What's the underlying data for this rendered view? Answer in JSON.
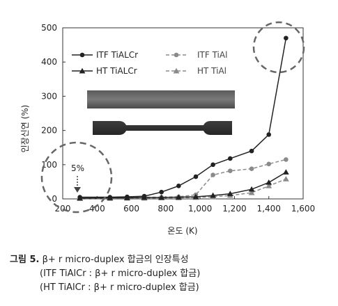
{
  "chart_data": {
    "type": "line",
    "xlabel": "온도 (K)",
    "ylabel": "인장신연 (%)",
    "xlim": [
      200,
      1600
    ],
    "ylim": [
      0,
      500
    ],
    "x_ticks": [
      "200",
      "400",
      "600",
      "800",
      "1,000",
      "1,200",
      "1,400",
      "1,600"
    ],
    "y_ticks": [
      "0",
      "100",
      "200",
      "300",
      "400",
      "500"
    ],
    "annotation": "5%",
    "grid": false,
    "legend_position": "top-left",
    "series": [
      {
        "name": "ITF TiALCr",
        "marker": "circle",
        "color": "#222222",
        "line_style": "solid",
        "x": [
          300,
          475,
          575,
          675,
          775,
          875,
          975,
          1075,
          1175,
          1300,
          1400,
          1500
        ],
        "y": [
          5,
          5,
          6,
          8,
          20,
          38,
          65,
          100,
          118,
          140,
          188,
          470
        ]
      },
      {
        "name": "ITF TiAl",
        "marker": "circle",
        "color": "#8a8a8a",
        "line_style": "dashed",
        "x": [
          300,
          475,
          575,
          675,
          775,
          875,
          975,
          1075,
          1175,
          1300,
          1400,
          1500
        ],
        "y": [
          3,
          3,
          4,
          5,
          5,
          6,
          12,
          70,
          82,
          88,
          102,
          115
        ]
      },
      {
        "name": "HT TiALCr",
        "marker": "triangle",
        "color": "#222222",
        "line_style": "solid",
        "x": [
          300,
          475,
          575,
          675,
          775,
          875,
          975,
          1075,
          1175,
          1300,
          1400,
          1500
        ],
        "y": [
          2,
          3,
          3,
          4,
          4,
          5,
          6,
          10,
          15,
          28,
          48,
          78
        ]
      },
      {
        "name": "HT TiAl",
        "marker": "triangle",
        "color": "#8a8a8a",
        "line_style": "dashed",
        "x": [
          300,
          475,
          575,
          675,
          775,
          875,
          975,
          1075,
          1175,
          1300,
          1400,
          1500
        ],
        "y": [
          1,
          1,
          2,
          2,
          3,
          3,
          4,
          6,
          10,
          18,
          38,
          58
        ]
      }
    ]
  },
  "caption": {
    "figure_label": "그림 5.",
    "title": "β+ r  micro-duplex 합금의 인장특성",
    "line2": "(ITF TiAlCr : β+ r  micro-duplex 합금)",
    "line3": "(HT TiAlCr : β+ r  micro-duplex 합금)"
  }
}
